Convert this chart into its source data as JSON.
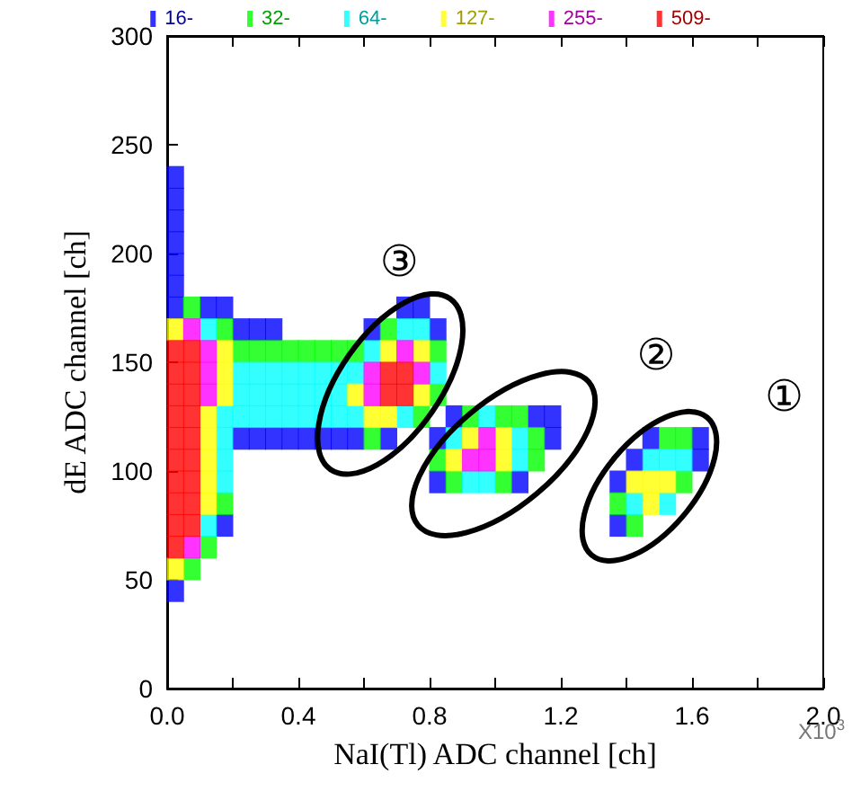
{
  "chart_data": {
    "type": "scatter",
    "xlabel": "NaI(Tl) ADC channel [ch]",
    "ylabel": "dE ADC channel [ch]",
    "xlim": [
      0,
      2.0
    ],
    "ylim": [
      0,
      300
    ],
    "xticks": [
      {
        "value": 0,
        "label": "0.0"
      },
      {
        "value": 0.2,
        "label": null
      },
      {
        "value": 0.4,
        "label": "0.4"
      },
      {
        "value": 0.6,
        "label": null
      },
      {
        "value": 0.8,
        "label": "0.8"
      },
      {
        "value": 1.0,
        "label": null
      },
      {
        "value": 1.2,
        "label": "1.2"
      },
      {
        "value": 1.4,
        "label": null
      },
      {
        "value": 1.6,
        "label": "1.6"
      },
      {
        "value": 1.8,
        "label": null
      },
      {
        "value": 2.0,
        "label": "2.0"
      }
    ],
    "yticks": [
      0,
      50,
      100,
      150,
      200,
      250,
      300
    ],
    "marker": "square",
    "legend": "top",
    "grid": false,
    "series": [
      {
        "name": "16-",
        "color": "#0000ff",
        "x": [
          0.025,
          0.025,
          0.025,
          0.025,
          0.025,
          0.025,
          0.025,
          0.025,
          0.125,
          0.175,
          0.175,
          0.225,
          0.275,
          0.325,
          0.375,
          0.425,
          0.475,
          0.525,
          0.225,
          0.275,
          0.325,
          0.575,
          0.625,
          0.675,
          0.725,
          0.775,
          0.825,
          0.825,
          0.825,
          0.875,
          1.075,
          1.125,
          1.175,
          1.175,
          1.375,
          1.375,
          1.425,
          1.475,
          1.625,
          1.625
        ],
        "values": [
          45,
          175,
          185,
          195,
          205,
          215,
          225,
          235,
          175,
          75,
          175,
          115,
          115,
          115,
          115,
          115,
          115,
          115,
          165,
          165,
          165,
          115,
          165,
          115,
          175,
          175,
          165,
          95,
          115,
          125,
          95,
          125,
          115,
          125,
          75,
          95,
          105,
          115,
          105,
          115
        ]
      },
      {
        "name": "32-",
        "color": "#00ff00",
        "x": [
          0.075,
          0.075,
          0.125,
          0.175,
          0.175,
          0.225,
          0.275,
          0.325,
          0.375,
          0.425,
          0.475,
          0.525,
          0.575,
          0.625,
          0.675,
          0.775,
          0.825,
          0.825,
          0.825,
          0.875,
          0.925,
          1.025,
          1.025,
          1.075,
          1.125,
          1.125,
          1.375,
          1.425,
          1.525,
          1.575,
          1.575
        ],
        "values": [
          55,
          175,
          65,
          85,
          165,
          155,
          155,
          155,
          155,
          155,
          155,
          155,
          155,
          115,
          165,
          125,
          135,
          155,
          105,
          95,
          125,
          95,
          125,
          125,
          105,
          115,
          85,
          75,
          115,
          95,
          115
        ]
      },
      {
        "name": "64-",
        "color": "#00ffff",
        "x": [
          0.125,
          0.125,
          0.175,
          0.175,
          0.175,
          0.175,
          0.225,
          0.275,
          0.325,
          0.375,
          0.425,
          0.475,
          0.525,
          0.225,
          0.275,
          0.325,
          0.375,
          0.425,
          0.475,
          0.525,
          0.225,
          0.275,
          0.325,
          0.375,
          0.425,
          0.475,
          0.525,
          0.575,
          0.575,
          0.625,
          0.725,
          0.725,
          0.775,
          0.825,
          0.875,
          0.925,
          0.975,
          0.975,
          1.075,
          1.075,
          1.425,
          1.475,
          1.525,
          1.525,
          1.575
        ],
        "values": [
          75,
          165,
          95,
          105,
          115,
          125,
          125,
          125,
          125,
          125,
          125,
          125,
          125,
          135,
          135,
          135,
          135,
          135,
          135,
          135,
          145,
          145,
          145,
          145,
          145,
          145,
          145,
          125,
          145,
          155,
          125,
          165,
          165,
          145,
          115,
          95,
          95,
          125,
          105,
          115,
          85,
          105,
          85,
          105,
          105
        ]
      },
      {
        "name": "127-",
        "color": "#ffff00",
        "x": [
          0.025,
          0.025,
          0.125,
          0.125,
          0.125,
          0.125,
          0.125,
          0.175,
          0.175,
          0.175,
          0.575,
          0.625,
          0.675,
          0.675,
          0.775,
          0.775,
          0.875,
          0.925,
          1.025,
          1.025,
          1.425,
          1.475,
          1.475,
          1.525
        ],
        "values": [
          55,
          165,
          85,
          95,
          105,
          115,
          125,
          135,
          145,
          155,
          135,
          125,
          125,
          155,
          135,
          155,
          105,
          115,
          105,
          115,
          95,
          85,
          95,
          95
        ]
      },
      {
        "name": "255-",
        "color": "#ff00ff",
        "x": [
          0.075,
          0.075,
          0.125,
          0.125,
          0.125,
          0.625,
          0.625,
          0.725,
          0.775,
          0.925,
          0.975,
          0.975
        ],
        "values": [
          65,
          165,
          135,
          145,
          155,
          135,
          145,
          155,
          145,
          105,
          105,
          115
        ]
      },
      {
        "name": "509-",
        "color": "#ff0000",
        "x": [
          0.025,
          0.025,
          0.025,
          0.025,
          0.025,
          0.025,
          0.025,
          0.025,
          0.025,
          0.025,
          0.075,
          0.075,
          0.075,
          0.075,
          0.075,
          0.075,
          0.075,
          0.075,
          0.075,
          0.675,
          0.675,
          0.725,
          0.725
        ],
        "values": [
          65,
          75,
          85,
          95,
          105,
          115,
          125,
          135,
          145,
          155,
          75,
          85,
          95,
          105,
          115,
          125,
          135,
          145,
          155,
          135,
          145,
          135,
          145
        ]
      }
    ],
    "annotations": [
      "③",
      "②",
      "①",
      "X10$^{3}$"
    ]
  }
}
